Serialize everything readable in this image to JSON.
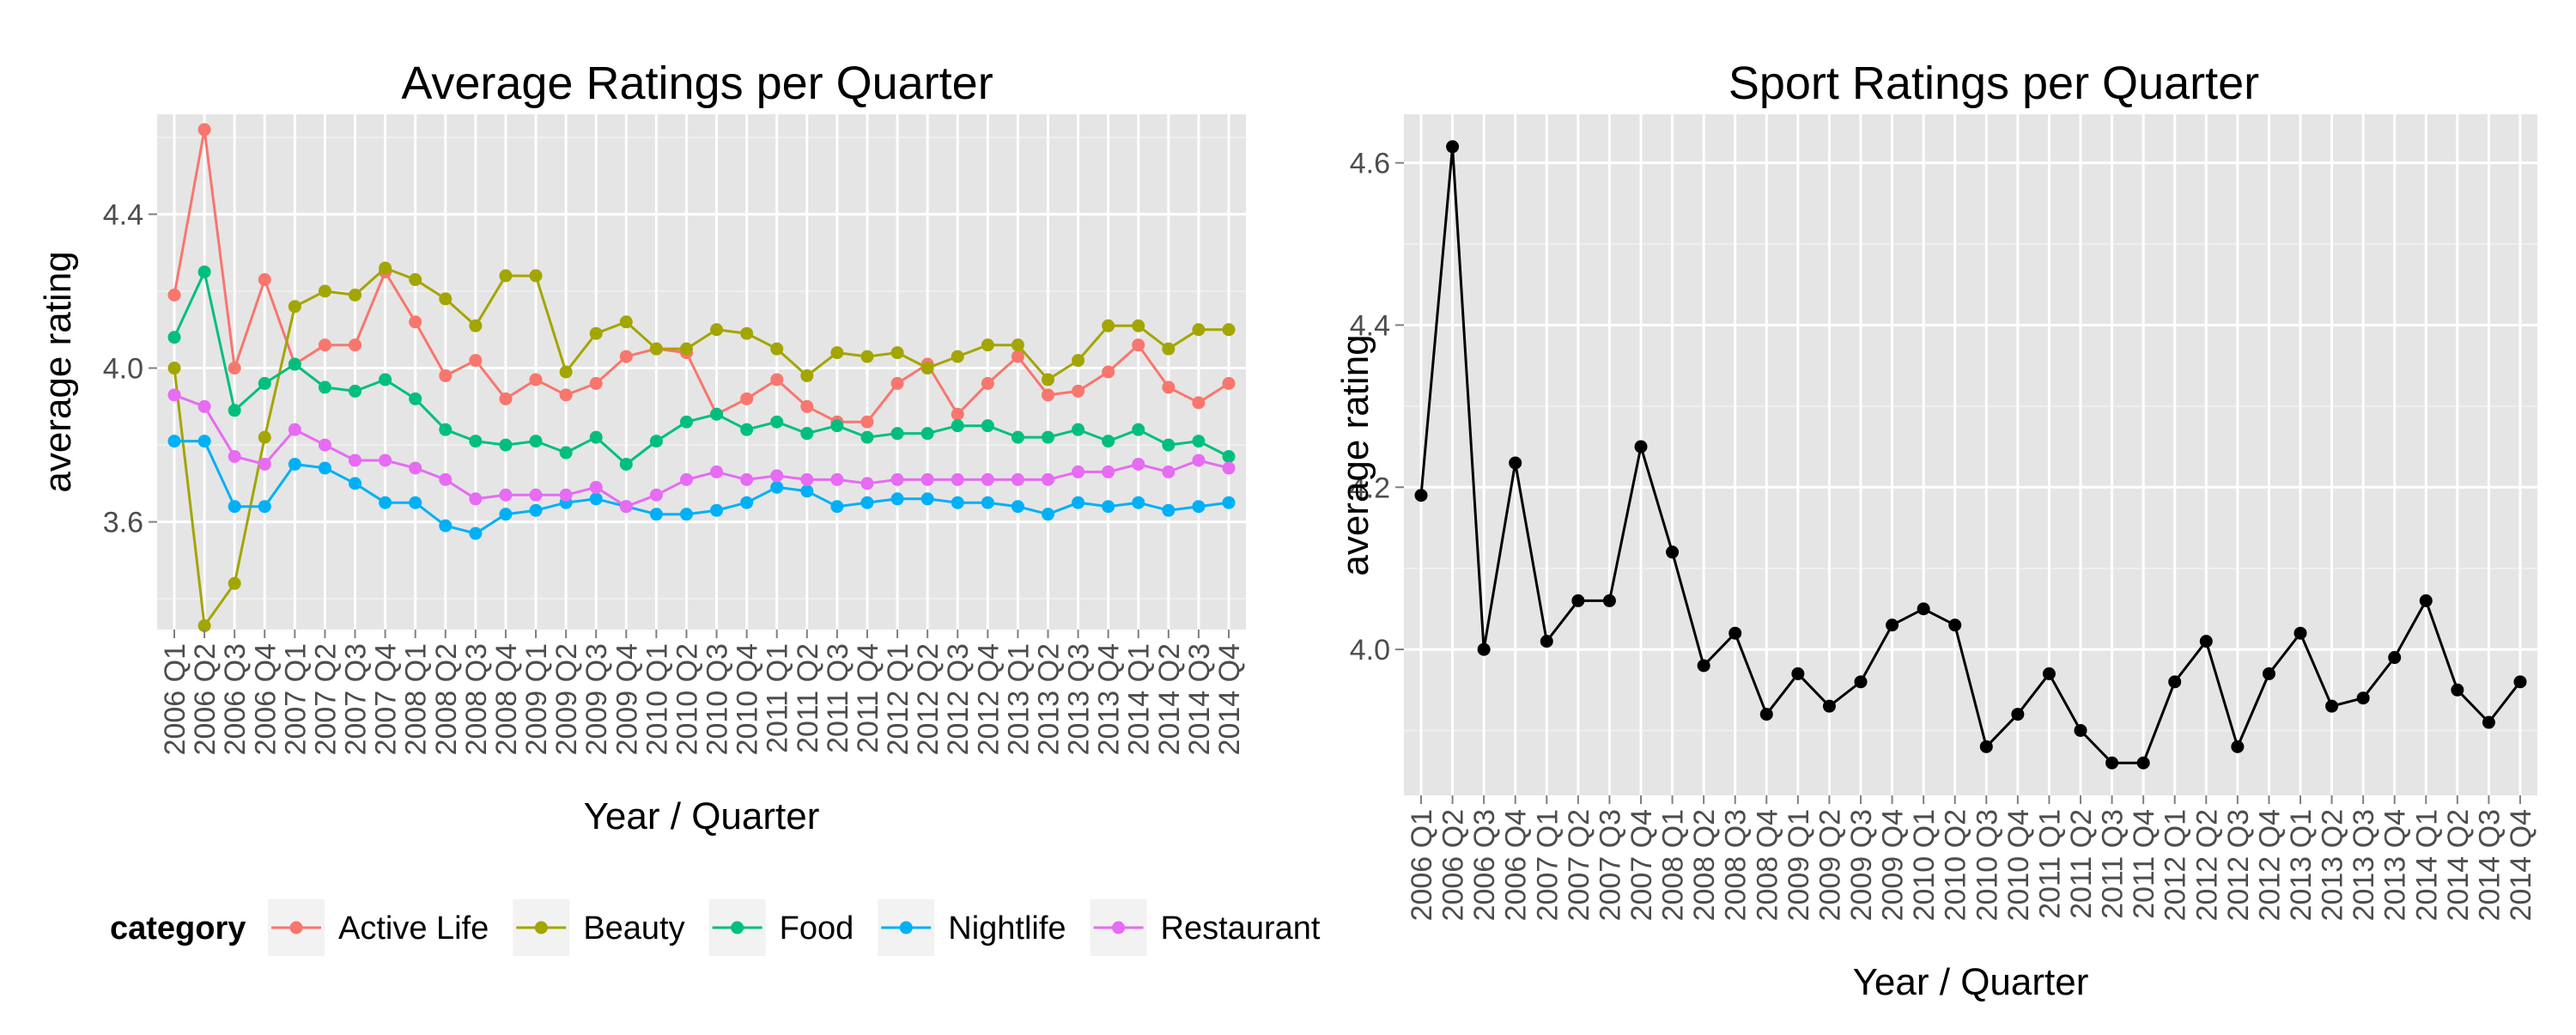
{
  "chart_data": [
    {
      "type": "line",
      "title": "Average Ratings per Quarter",
      "xlabel": "Year / Quarter",
      "ylabel": "average rating",
      "ylim": [
        3.32,
        4.66
      ],
      "yticks": [
        3.6,
        4.0,
        4.4
      ],
      "ytick_labels": [
        "3.6",
        "4.0",
        "4.4"
      ],
      "grid": true,
      "legend": {
        "position": "bottom",
        "title": "category"
      },
      "categories": [
        "2006 Q1",
        "2006 Q2",
        "2006 Q3",
        "2006 Q4",
        "2007 Q1",
        "2007 Q2",
        "2007 Q3",
        "2007 Q4",
        "2008 Q1",
        "2008 Q2",
        "2008 Q3",
        "2008 Q4",
        "2009 Q1",
        "2009 Q2",
        "2009 Q3",
        "2009 Q4",
        "2010 Q1",
        "2010 Q2",
        "2010 Q3",
        "2010 Q4",
        "2011 Q1",
        "2011 Q2",
        "2011 Q3",
        "2011 Q4",
        "2012 Q1",
        "2012 Q2",
        "2012 Q3",
        "2012 Q4",
        "2013 Q1",
        "2013 Q2",
        "2013 Q3",
        "2013 Q4",
        "2014 Q1",
        "2014 Q2",
        "2014 Q3",
        "2014 Q4"
      ],
      "series": [
        {
          "name": "Active Life",
          "color": "#F8766D",
          "values": [
            4.19,
            4.62,
            4.0,
            4.23,
            4.01,
            4.06,
            4.06,
            4.25,
            4.12,
            3.98,
            4.02,
            3.92,
            3.97,
            3.93,
            3.96,
            4.03,
            4.05,
            4.04,
            3.88,
            3.92,
            3.97,
            3.9,
            3.86,
            3.86,
            3.96,
            4.01,
            3.88,
            3.96,
            4.03,
            3.93,
            3.94,
            3.99,
            4.06,
            3.95,
            3.91,
            3.96
          ]
        },
        {
          "name": "Beauty",
          "color": "#A3A500",
          "values": [
            4.0,
            3.33,
            3.44,
            3.82,
            4.16,
            4.2,
            4.19,
            4.26,
            4.23,
            4.18,
            4.11,
            4.24,
            4.24,
            3.99,
            4.09,
            4.12,
            4.05,
            4.05,
            4.1,
            4.09,
            4.05,
            3.98,
            4.04,
            4.03,
            4.04,
            4.0,
            4.03,
            4.06,
            4.06,
            3.97,
            4.02,
            4.11,
            4.11,
            4.05,
            4.1,
            4.1
          ]
        },
        {
          "name": "Food",
          "color": "#00BF7D",
          "values": [
            4.08,
            4.25,
            3.89,
            3.96,
            4.01,
            3.95,
            3.94,
            3.97,
            3.92,
            3.84,
            3.81,
            3.8,
            3.81,
            3.78,
            3.82,
            3.75,
            3.81,
            3.86,
            3.88,
            3.84,
            3.86,
            3.83,
            3.85,
            3.82,
            3.83,
            3.83,
            3.85,
            3.85,
            3.82,
            3.82,
            3.84,
            3.81,
            3.84,
            3.8,
            3.81,
            3.77
          ]
        },
        {
          "name": "Nightlife",
          "color": "#00B0F6",
          "values": [
            3.81,
            3.81,
            3.64,
            3.64,
            3.75,
            3.74,
            3.7,
            3.65,
            3.65,
            3.59,
            3.57,
            3.62,
            3.63,
            3.65,
            3.66,
            3.64,
            3.62,
            3.62,
            3.63,
            3.65,
            3.69,
            3.68,
            3.64,
            3.65,
            3.66,
            3.66,
            3.65,
            3.65,
            3.64,
            3.62,
            3.65,
            3.64,
            3.65,
            3.63,
            3.64,
            3.65
          ]
        },
        {
          "name": "Restaurant",
          "color": "#E76BF3",
          "values": [
            3.93,
            3.9,
            3.77,
            3.75,
            3.84,
            3.8,
            3.76,
            3.76,
            3.74,
            3.71,
            3.66,
            3.67,
            3.67,
            3.67,
            3.69,
            3.64,
            3.67,
            3.71,
            3.73,
            3.71,
            3.72,
            3.71,
            3.71,
            3.7,
            3.71,
            3.71,
            3.71,
            3.71,
            3.71,
            3.71,
            3.73,
            3.73,
            3.75,
            3.73,
            3.76,
            3.74
          ]
        }
      ]
    },
    {
      "type": "line",
      "title": "Sport Ratings per Quarter",
      "xlabel": "Year / Quarter",
      "ylabel": "average rating",
      "ylim": [
        3.82,
        4.66
      ],
      "yticks": [
        4.0,
        4.2,
        4.4,
        4.6
      ],
      "ytick_labels": [
        "4.0",
        "4.2",
        "4.4",
        "4.6"
      ],
      "grid": true,
      "categories": [
        "2006 Q1",
        "2006 Q2",
        "2006 Q3",
        "2006 Q4",
        "2007 Q1",
        "2007 Q2",
        "2007 Q3",
        "2007 Q4",
        "2008 Q1",
        "2008 Q2",
        "2008 Q3",
        "2008 Q4",
        "2009 Q1",
        "2009 Q2",
        "2009 Q3",
        "2009 Q4",
        "2010 Q1",
        "2010 Q2",
        "2010 Q3",
        "2010 Q4",
        "2011 Q1",
        "2011 Q2",
        "2011 Q3",
        "2011 Q4",
        "2012 Q1",
        "2012 Q2",
        "2012 Q3",
        "2012 Q4",
        "2013 Q1",
        "2013 Q2",
        "2013 Q3",
        "2013 Q4",
        "2014 Q1",
        "2014 Q2",
        "2014 Q3",
        "2014 Q4"
      ],
      "series": [
        {
          "color": "#000000",
          "values": [
            4.19,
            4.62,
            4.0,
            4.23,
            4.01,
            4.06,
            4.06,
            4.25,
            4.12,
            3.98,
            4.02,
            3.92,
            3.97,
            3.93,
            3.96,
            4.03,
            4.05,
            4.03,
            3.88,
            3.92,
            3.97,
            3.9,
            3.86,
            3.86,
            3.96,
            4.01,
            3.88,
            3.97,
            4.02,
            3.93,
            3.94,
            3.99,
            4.06,
            3.95,
            3.91,
            3.96
          ]
        }
      ]
    }
  ]
}
